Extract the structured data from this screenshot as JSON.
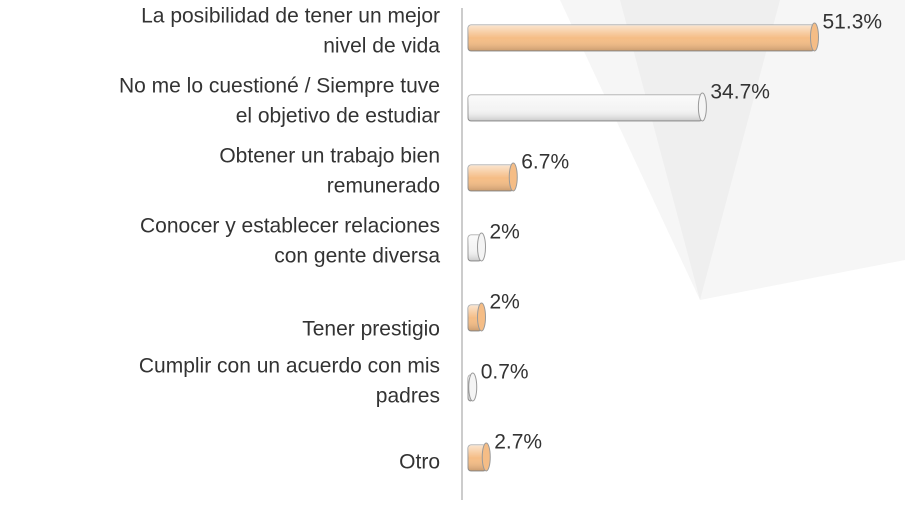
{
  "chart_data": {
    "type": "bar",
    "orientation": "horizontal",
    "categories": [
      [
        "La posibilidad de tener un mejor",
        "nivel de vida"
      ],
      [
        "No me lo cuestioné / Siempre tuve",
        "el objetivo de estudiar"
      ],
      [
        "Obtener un trabajo bien",
        "remunerado"
      ],
      [
        "Conocer y establecer relaciones",
        "con gente diversa"
      ],
      [
        "Tener prestigio"
      ],
      [
        "Cumplir con un acuerdo con mis",
        "padres"
      ],
      [
        "Otro"
      ]
    ],
    "values": [
      51.3,
      34.7,
      6.7,
      2,
      2,
      0.7,
      2.7
    ],
    "value_labels": [
      "51.3%",
      "34.7%",
      "6.7%",
      "2%",
      "2%",
      "0.7%",
      "2.7%"
    ],
    "colors": [
      "#f5bd86",
      "#f4f4f4",
      "#f5bd86",
      "#f4f4f4",
      "#f5bd86",
      "#f4f4f4",
      "#f5bd86"
    ],
    "xlim": [
      0,
      57
    ]
  }
}
